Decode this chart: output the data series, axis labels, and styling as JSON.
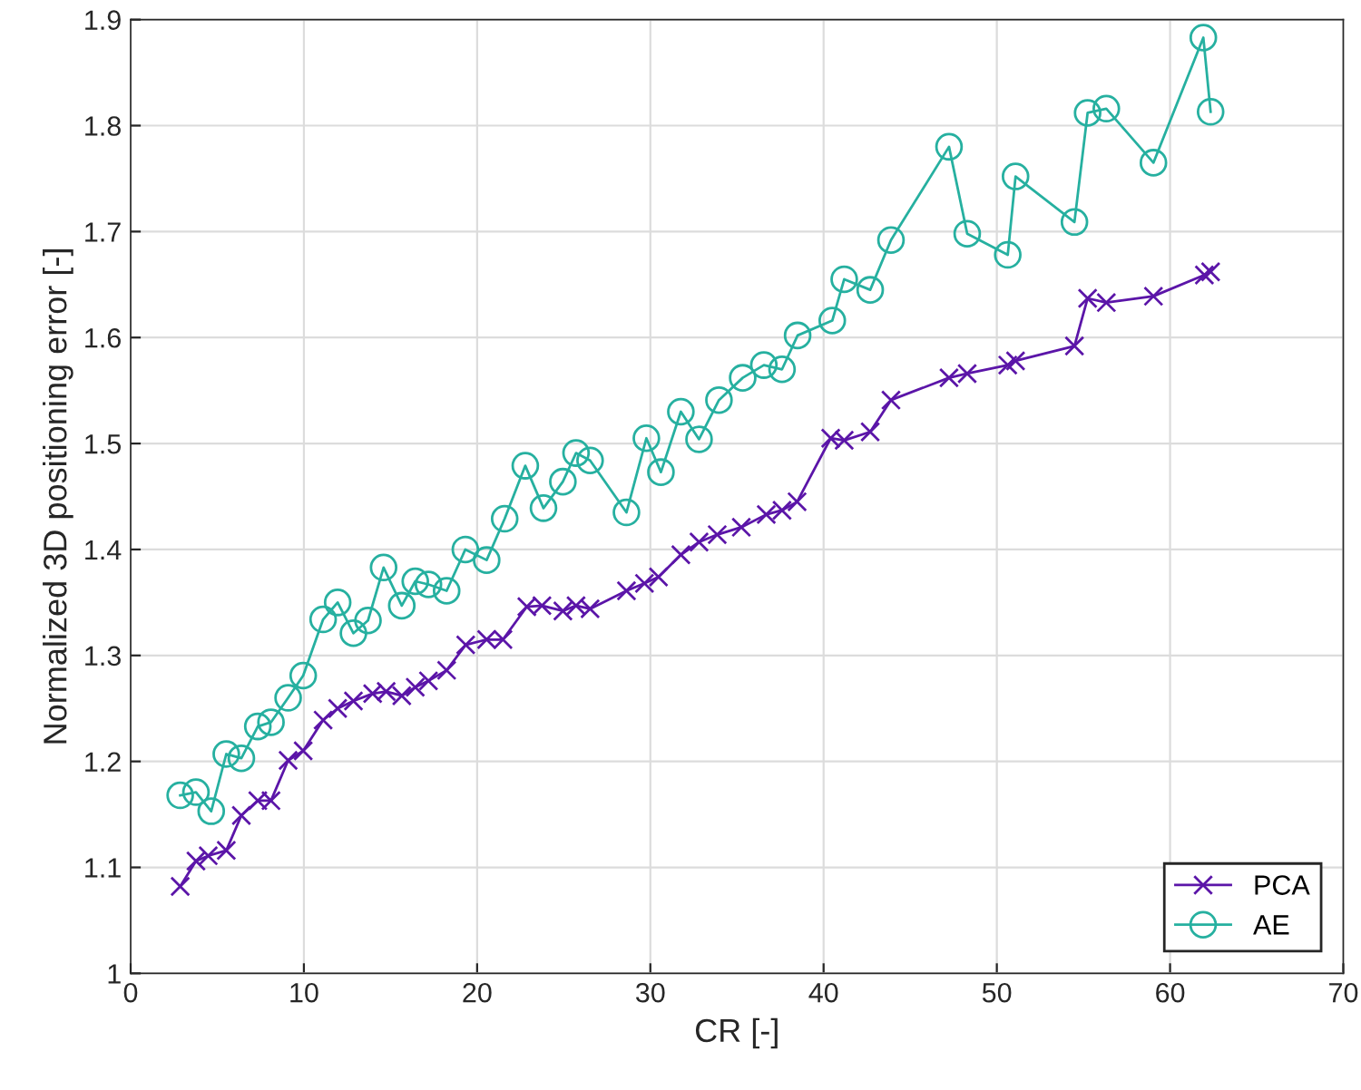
{
  "chart_data": {
    "type": "line",
    "xlabel": "CR [-]",
    "ylabel": "Normalized 3D positioning error [-]",
    "xlim": [
      0,
      70
    ],
    "xticks": [
      0,
      10,
      20,
      30,
      40,
      50,
      60,
      70
    ],
    "ylim": [
      1,
      1.9
    ],
    "yticks": [
      {
        "value": 1,
        "label": "1"
      },
      1.1,
      1.2,
      1.3,
      1.4,
      1.5,
      1.6,
      1.7,
      1.8,
      1.9
    ],
    "grid": true,
    "legend": "bottom right",
    "series": [
      {
        "name": "PCA",
        "color": "#5b15a8",
        "marker": "cross",
        "x": [
          2.86,
          3.77,
          4.48,
          5.52,
          6.39,
          7.34,
          8.1,
          9.09,
          9.96,
          11.11,
          11.95,
          12.86,
          13.97,
          14.75,
          15.65,
          16.43,
          17.19,
          18.24,
          19.34,
          20.55,
          21.49,
          22.87,
          23.74,
          24.95,
          25.71,
          26.52,
          28.62,
          29.66,
          30.47,
          31.76,
          32.81,
          33.86,
          35.25,
          36.69,
          37.6,
          38.47,
          40.41,
          41.19,
          42.69,
          43.89,
          47.24,
          48.29,
          50.63,
          51.08,
          54.48,
          55.24,
          56.32,
          59.04,
          61.98,
          62.34
        ],
        "values": [
          1.082,
          1.106,
          1.111,
          1.116,
          1.149,
          1.163,
          1.163,
          1.201,
          1.21,
          1.239,
          1.25,
          1.257,
          1.264,
          1.266,
          1.262,
          1.27,
          1.276,
          1.286,
          1.31,
          1.315,
          1.315,
          1.346,
          1.347,
          1.342,
          1.347,
          1.344,
          1.361,
          1.368,
          1.374,
          1.395,
          1.407,
          1.414,
          1.421,
          1.433,
          1.437,
          1.445,
          1.505,
          1.503,
          1.511,
          1.541,
          1.562,
          1.566,
          1.574,
          1.578,
          1.592,
          1.637,
          1.633,
          1.639,
          1.659,
          1.662
        ]
      },
      {
        "name": "AE",
        "color": "#26b0a0",
        "marker": "circle",
        "x": [
          2.86,
          3.77,
          4.65,
          5.52,
          6.39,
          7.34,
          8.1,
          9.09,
          9.96,
          11.11,
          11.95,
          12.86,
          13.7,
          14.6,
          15.65,
          16.43,
          17.19,
          18.24,
          19.32,
          20.55,
          21.59,
          22.78,
          23.83,
          24.95,
          25.71,
          26.52,
          28.62,
          29.77,
          30.61,
          31.76,
          32.81,
          33.96,
          35.33,
          36.55,
          37.6,
          38.5,
          40.5,
          41.19,
          42.69,
          43.89,
          47.24,
          48.29,
          50.63,
          51.08,
          54.48,
          55.24,
          56.32,
          59.04,
          61.92,
          62.34
        ],
        "values": [
          1.168,
          1.171,
          1.153,
          1.207,
          1.203,
          1.233,
          1.237,
          1.26,
          1.281,
          1.334,
          1.35,
          1.321,
          1.333,
          1.383,
          1.347,
          1.37,
          1.367,
          1.361,
          1.4,
          1.39,
          1.429,
          1.479,
          1.439,
          1.464,
          1.491,
          1.484,
          1.435,
          1.505,
          1.473,
          1.53,
          1.504,
          1.541,
          1.562,
          1.574,
          1.57,
          1.602,
          1.616,
          1.655,
          1.645,
          1.692,
          1.78,
          1.698,
          1.678,
          1.752,
          1.709,
          1.812,
          1.816,
          1.765,
          1.883,
          1.813
        ]
      }
    ]
  }
}
